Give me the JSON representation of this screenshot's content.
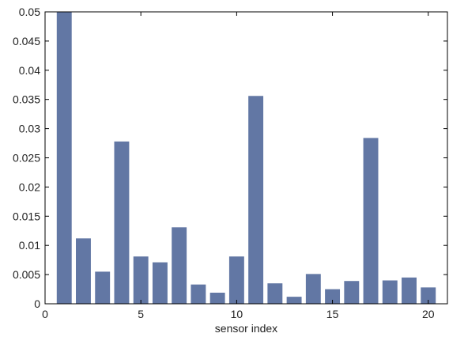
{
  "chart_data": {
    "type": "bar",
    "title": "",
    "xlabel": "sensor index",
    "ylabel": "",
    "x": [
      1,
      2,
      3,
      4,
      5,
      6,
      7,
      8,
      9,
      10,
      11,
      12,
      13,
      14,
      15,
      16,
      17,
      18,
      19,
      20
    ],
    "values": [
      0.05,
      0.0112,
      0.0055,
      0.0278,
      0.0081,
      0.0071,
      0.0131,
      0.0033,
      0.0019,
      0.0081,
      0.0356,
      0.0035,
      0.0012,
      0.0051,
      0.0025,
      0.0039,
      0.0284,
      0.004,
      0.0045,
      0.0028
    ],
    "xlim": [
      0,
      21
    ],
    "ylim": [
      0,
      0.05
    ],
    "xticks": [
      0,
      5,
      10,
      15,
      20
    ],
    "xtick_labels": [
      "0",
      "5",
      "10",
      "15",
      "20"
    ],
    "yticks": [
      0,
      0.005,
      0.01,
      0.015,
      0.02,
      0.025,
      0.03,
      0.035,
      0.04,
      0.045,
      0.05
    ],
    "ytick_labels": [
      "0",
      "0.005",
      "0.01",
      "0.015",
      "0.02",
      "0.025",
      "0.03",
      "0.035",
      "0.04",
      "0.045",
      "0.05"
    ],
    "bar_color": "#6277a4",
    "grid": false
  }
}
